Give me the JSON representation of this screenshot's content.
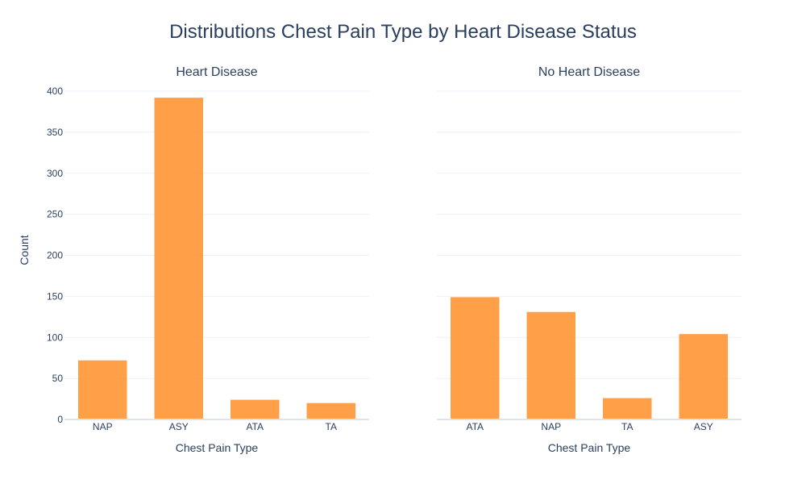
{
  "title": "Distributions Chest Pain Type by Heart Disease Status",
  "ylabel": "Count",
  "colors": {
    "bar": "#ff9533",
    "grid": "#ebf0f8",
    "axis_text": "#2a3f5f",
    "zeroline": "#e1e5ed"
  },
  "chart_data": [
    {
      "type": "bar",
      "subtitle": "Heart Disease",
      "xlabel": "Chest Pain Type",
      "categories": [
        "NAP",
        "ASY",
        "ATA",
        "TA"
      ],
      "values": [
        72,
        392,
        24,
        20
      ],
      "ylim": [
        0,
        400
      ],
      "yticks": [
        0,
        50,
        100,
        150,
        200,
        250,
        300,
        350,
        400
      ]
    },
    {
      "type": "bar",
      "subtitle": "No Heart Disease",
      "xlabel": "Chest Pain Type",
      "categories": [
        "ATA",
        "NAP",
        "TA",
        "ASY"
      ],
      "values": [
        149,
        131,
        26,
        104
      ],
      "ylim": [
        0,
        400
      ],
      "yticks": [
        0,
        50,
        100,
        150,
        200,
        250,
        300,
        350,
        400
      ]
    }
  ]
}
